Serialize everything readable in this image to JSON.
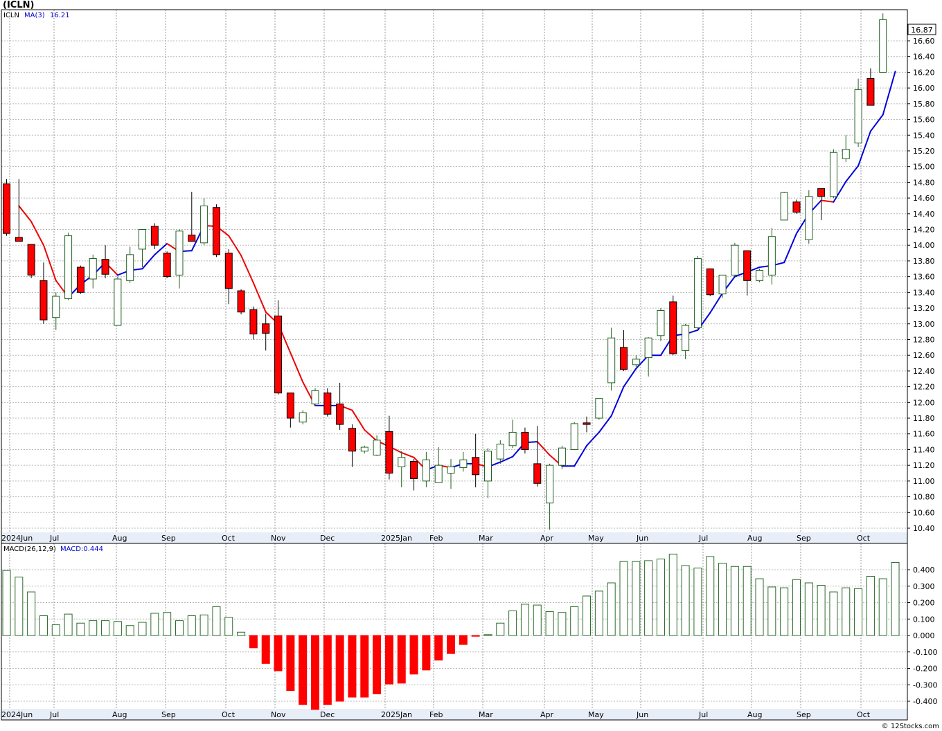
{
  "title": "(ICLN)",
  "watermark": "© 12Stocks.com",
  "colors": {
    "up": "#1f5f1f",
    "down": "#ff0000",
    "ma_up": "#0000dd",
    "ma_down": "#ee0000",
    "macd_pos": "#2a6a2a",
    "macd_neg": "#ff0000",
    "axis_band": "#e8eef8",
    "panel_border": "#000000"
  },
  "chart_data": [
    {
      "type": "candlestick",
      "panel": "price",
      "legend": {
        "symbol": "ICLN",
        "ma_label": "MA(3)",
        "ma_value": "16.21",
        "last_price": "16.87"
      },
      "y_ticks": [
        "16.60",
        "16.40",
        "16.20",
        "16.00",
        "15.80",
        "15.60",
        "15.40",
        "15.20",
        "15.00",
        "14.80",
        "14.60",
        "14.40",
        "14.20",
        "14.00",
        "13.80",
        "13.60",
        "13.40",
        "13.20",
        "13.00",
        "12.80",
        "12.60",
        "12.40",
        "12.20",
        "12.00",
        "11.80",
        "11.60",
        "11.40",
        "11.20",
        "11.00",
        "10.80",
        "10.60",
        "10.40"
      ],
      "ylim": [
        10.3,
        17.2
      ],
      "month_labels": [
        "2024Jun",
        "Jul",
        "Aug",
        "Sep",
        "Oct",
        "Nov",
        "Dec",
        "2025Jan",
        "Feb",
        "Mar",
        "Apr",
        "May",
        "Jun",
        "Jul",
        "Aug",
        "Sep",
        "Oct"
      ],
      "weeks": [
        {
          "o": 14.78,
          "h": 14.84,
          "l": 14.12,
          "c": 14.15
        },
        {
          "o": 14.1,
          "h": 14.84,
          "l": 14.05,
          "c": 14.05
        },
        {
          "o": 14.01,
          "h": 14.01,
          "l": 13.58,
          "c": 13.62
        },
        {
          "o": 13.55,
          "h": 13.78,
          "l": 13.0,
          "c": 13.05
        },
        {
          "o": 13.08,
          "h": 13.4,
          "l": 12.92,
          "c": 13.35
        },
        {
          "o": 13.32,
          "h": 14.16,
          "l": 13.3,
          "c": 14.12
        },
        {
          "o": 13.72,
          "h": 13.74,
          "l": 13.38,
          "c": 13.4
        },
        {
          "o": 13.57,
          "h": 13.88,
          "l": 13.45,
          "c": 13.83
        },
        {
          "o": 13.82,
          "h": 14.0,
          "l": 13.58,
          "c": 13.63
        },
        {
          "o": 12.98,
          "h": 13.6,
          "l": 12.98,
          "c": 13.57
        },
        {
          "o": 13.55,
          "h": 13.98,
          "l": 13.52,
          "c": 13.88
        },
        {
          "o": 13.95,
          "h": 14.2,
          "l": 13.72,
          "c": 14.2
        },
        {
          "o": 14.24,
          "h": 14.28,
          "l": 13.95,
          "c": 14.0
        },
        {
          "o": 13.9,
          "h": 13.92,
          "l": 13.58,
          "c": 13.6
        },
        {
          "o": 13.62,
          "h": 14.2,
          "l": 13.45,
          "c": 14.18
        },
        {
          "o": 14.13,
          "h": 14.68,
          "l": 14.08,
          "c": 14.05
        },
        {
          "o": 14.03,
          "h": 14.6,
          "l": 14.0,
          "c": 14.5
        },
        {
          "o": 14.48,
          "h": 14.52,
          "l": 13.85,
          "c": 13.88
        },
        {
          "o": 13.9,
          "h": 13.95,
          "l": 13.25,
          "c": 13.45
        },
        {
          "o": 13.42,
          "h": 13.44,
          "l": 13.12,
          "c": 13.15
        },
        {
          "o": 13.18,
          "h": 13.22,
          "l": 12.8,
          "c": 12.87
        },
        {
          "o": 13.0,
          "h": 13.13,
          "l": 12.66,
          "c": 12.88
        },
        {
          "o": 13.1,
          "h": 13.3,
          "l": 12.1,
          "c": 12.12
        },
        {
          "o": 12.12,
          "h": 12.12,
          "l": 11.68,
          "c": 11.8
        },
        {
          "o": 11.75,
          "h": 11.9,
          "l": 11.72,
          "c": 11.87
        },
        {
          "o": 11.98,
          "h": 12.18,
          "l": 11.95,
          "c": 12.15
        },
        {
          "o": 12.12,
          "h": 12.18,
          "l": 11.82,
          "c": 11.85
        },
        {
          "o": 11.98,
          "h": 12.25,
          "l": 11.65,
          "c": 11.72
        },
        {
          "o": 11.67,
          "h": 11.72,
          "l": 11.18,
          "c": 11.38
        },
        {
          "o": 11.38,
          "h": 11.45,
          "l": 11.35,
          "c": 11.43
        },
        {
          "o": 11.33,
          "h": 11.58,
          "l": 11.32,
          "c": 11.52
        },
        {
          "o": 11.63,
          "h": 11.83,
          "l": 11.02,
          "c": 11.1
        },
        {
          "o": 11.18,
          "h": 11.38,
          "l": 10.92,
          "c": 11.3
        },
        {
          "o": 11.25,
          "h": 11.28,
          "l": 10.88,
          "c": 11.03
        },
        {
          "o": 11.0,
          "h": 11.37,
          "l": 10.92,
          "c": 11.27
        },
        {
          "o": 10.98,
          "h": 11.43,
          "l": 10.98,
          "c": 11.2
        },
        {
          "o": 11.1,
          "h": 11.28,
          "l": 10.9,
          "c": 11.18
        },
        {
          "o": 11.17,
          "h": 11.37,
          "l": 11.12,
          "c": 11.27
        },
        {
          "o": 11.3,
          "h": 11.6,
          "l": 10.92,
          "c": 11.08
        },
        {
          "o": 11.0,
          "h": 11.42,
          "l": 10.78,
          "c": 11.38
        },
        {
          "o": 11.28,
          "h": 11.52,
          "l": 11.22,
          "c": 11.47
        },
        {
          "o": 11.45,
          "h": 11.78,
          "l": 11.42,
          "c": 11.62
        },
        {
          "o": 11.62,
          "h": 11.68,
          "l": 11.35,
          "c": 11.4
        },
        {
          "o": 11.22,
          "h": 11.7,
          "l": 10.93,
          "c": 10.97
        },
        {
          "o": 10.72,
          "h": 11.22,
          "l": 10.38,
          "c": 11.2
        },
        {
          "o": 11.2,
          "h": 11.45,
          "l": 11.15,
          "c": 11.42
        },
        {
          "o": 11.4,
          "h": 11.75,
          "l": 11.4,
          "c": 11.73
        },
        {
          "o": 11.74,
          "h": 11.82,
          "l": 11.62,
          "c": 11.72
        },
        {
          "o": 11.8,
          "h": 12.05,
          "l": 11.78,
          "c": 12.05
        },
        {
          "o": 12.25,
          "h": 12.95,
          "l": 12.15,
          "c": 12.82
        },
        {
          "o": 12.7,
          "h": 12.92,
          "l": 12.4,
          "c": 12.42
        },
        {
          "o": 12.48,
          "h": 12.6,
          "l": 12.45,
          "c": 12.55
        },
        {
          "o": 12.57,
          "h": 12.83,
          "l": 12.33,
          "c": 12.82
        },
        {
          "o": 12.85,
          "h": 13.2,
          "l": 12.78,
          "c": 13.17
        },
        {
          "o": 13.28,
          "h": 13.36,
          "l": 12.6,
          "c": 12.62
        },
        {
          "o": 12.66,
          "h": 13.0,
          "l": 12.55,
          "c": 12.98
        },
        {
          "o": 12.95,
          "h": 13.86,
          "l": 12.92,
          "c": 13.83
        },
        {
          "o": 13.7,
          "h": 13.7,
          "l": 13.35,
          "c": 13.37
        },
        {
          "o": 13.38,
          "h": 13.6,
          "l": 13.33,
          "c": 13.62
        },
        {
          "o": 13.62,
          "h": 14.03,
          "l": 13.6,
          "c": 14.0
        },
        {
          "o": 13.93,
          "h": 13.93,
          "l": 13.36,
          "c": 13.55
        },
        {
          "o": 13.55,
          "h": 13.7,
          "l": 13.53,
          "c": 13.68
        },
        {
          "o": 13.62,
          "h": 14.22,
          "l": 13.5,
          "c": 14.11
        },
        {
          "o": 14.32,
          "h": 14.68,
          "l": 14.32,
          "c": 14.67
        },
        {
          "o": 14.55,
          "h": 14.58,
          "l": 14.4,
          "c": 14.42
        },
        {
          "o": 14.07,
          "h": 14.7,
          "l": 14.02,
          "c": 14.62
        },
        {
          "o": 14.72,
          "h": 14.72,
          "l": 14.32,
          "c": 14.62
        },
        {
          "o": 14.62,
          "h": 15.22,
          "l": 14.6,
          "c": 15.18
        },
        {
          "o": 15.1,
          "h": 15.4,
          "l": 15.06,
          "c": 15.22
        },
        {
          "o": 15.3,
          "h": 16.12,
          "l": 15.25,
          "c": 15.98
        },
        {
          "o": 16.12,
          "h": 16.25,
          "l": 15.78,
          "c": 15.78
        },
        {
          "o": 16.2,
          "h": 16.95,
          "l": 16.2,
          "c": 16.87
        }
      ],
      "ma3": [
        14.5,
        14.3,
        14.0,
        13.55,
        13.34,
        13.5,
        13.62,
        13.78,
        13.62,
        13.68,
        13.7,
        13.88,
        14.02,
        13.92,
        13.93,
        14.25,
        14.24,
        14.12,
        13.87,
        13.52,
        13.15,
        13.0,
        12.63,
        12.26,
        11.96,
        11.96,
        11.96,
        11.9,
        11.65,
        11.51,
        11.44,
        11.36,
        11.3,
        11.14,
        11.2,
        11.17,
        11.22,
        11.22,
        11.18,
        11.24,
        11.31,
        11.49,
        11.5,
        11.33,
        11.19,
        11.19,
        11.45,
        11.62,
        11.83,
        12.2,
        12.43,
        12.6,
        12.6,
        12.85,
        12.87,
        12.92,
        13.14,
        13.39,
        13.6,
        13.66,
        13.72,
        13.74,
        13.78,
        14.15,
        14.4,
        14.57,
        14.55,
        14.81,
        15.01,
        15.45,
        15.66,
        16.21
      ]
    },
    {
      "type": "bar",
      "panel": "macd",
      "legend": {
        "label": "MACD(26,12,9)",
        "value_label": "MACD:0.444"
      },
      "y_ticks": [
        "0.400",
        "0.300",
        "0.200",
        "0.100",
        "0.000",
        "-0.100",
        "-0.200",
        "-0.300",
        "-0.400"
      ],
      "ylim": [
        -0.45,
        0.5
      ],
      "month_labels": [
        "2024Jun",
        "Jul",
        "Aug",
        "Sep",
        "Oct",
        "Nov",
        "Dec",
        "2025Jan",
        "Feb",
        "Mar",
        "Apr",
        "May",
        "Jun",
        "Jul",
        "Aug",
        "Sep",
        "Oct"
      ],
      "values": [
        0.395,
        0.355,
        0.265,
        0.12,
        0.065,
        0.13,
        0.075,
        0.09,
        0.09,
        0.085,
        0.06,
        0.08,
        0.135,
        0.14,
        0.09,
        0.12,
        0.125,
        0.175,
        0.11,
        0.02,
        -0.075,
        -0.17,
        -0.215,
        -0.335,
        -0.42,
        -0.45,
        -0.42,
        -0.4,
        -0.375,
        -0.375,
        -0.355,
        -0.295,
        -0.29,
        -0.235,
        -0.21,
        -0.15,
        -0.11,
        -0.055,
        -0.005,
        0.005,
        0.075,
        0.15,
        0.19,
        0.185,
        0.145,
        0.14,
        0.175,
        0.24,
        0.27,
        0.32,
        0.45,
        0.45,
        0.455,
        0.465,
        0.495,
        0.425,
        0.41,
        0.48,
        0.44,
        0.42,
        0.42,
        0.345,
        0.295,
        0.29,
        0.34,
        0.32,
        0.305,
        0.265,
        0.29,
        0.285,
        0.36,
        0.345,
        0.444
      ]
    }
  ]
}
